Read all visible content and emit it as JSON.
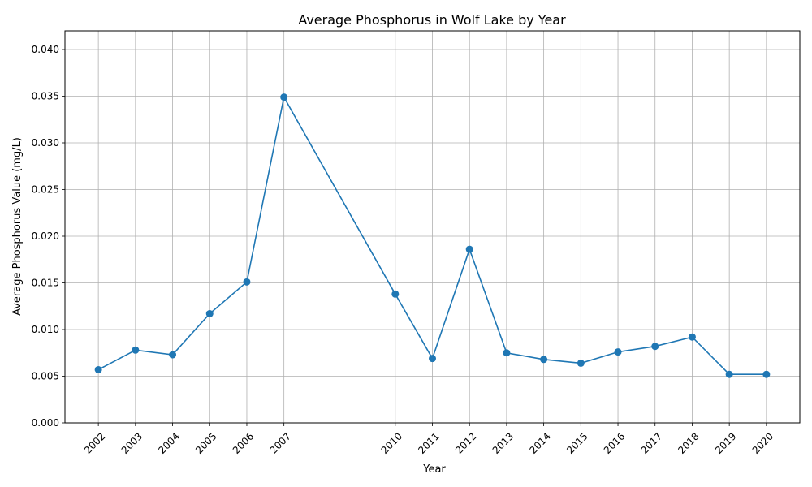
{
  "chart_data": {
    "type": "line",
    "title": "Average Phosphorus in Wolf Lake by Year",
    "xlabel": "Year",
    "ylabel": "Average Phosphorus Value (mg/L)",
    "x": [
      2002,
      2003,
      2004,
      2005,
      2006,
      2007,
      2010,
      2011,
      2012,
      2013,
      2014,
      2015,
      2016,
      2017,
      2018,
      2019,
      2020
    ],
    "x_tick_labels": [
      "2002",
      "2003",
      "2004",
      "2005",
      "2006",
      "2007",
      "2010",
      "2011",
      "2012",
      "2013",
      "2014",
      "2015",
      "2016",
      "2017",
      "2018",
      "2019",
      "2020"
    ],
    "series": [
      {
        "values": [
          0.0057,
          0.0078,
          0.0073,
          0.0117,
          0.0151,
          0.0349,
          0.0138,
          0.0069,
          0.0186,
          0.0075,
          0.0068,
          0.0064,
          0.0076,
          0.0082,
          0.0092,
          0.0052,
          0.0052
        ],
        "color": "#1f77b4",
        "marker": "circle"
      }
    ],
    "y_ticks": [
      0.0,
      0.005,
      0.01,
      0.015,
      0.02,
      0.025,
      0.03,
      0.035,
      0.04
    ],
    "y_tick_labels": [
      "0.000",
      "0.005",
      "0.010",
      "0.015",
      "0.020",
      "0.025",
      "0.030",
      "0.035",
      "0.040"
    ],
    "xlim": [
      2001.1,
      2020.9
    ],
    "ylim": [
      0.0,
      0.042
    ],
    "grid": true,
    "legend": null
  }
}
